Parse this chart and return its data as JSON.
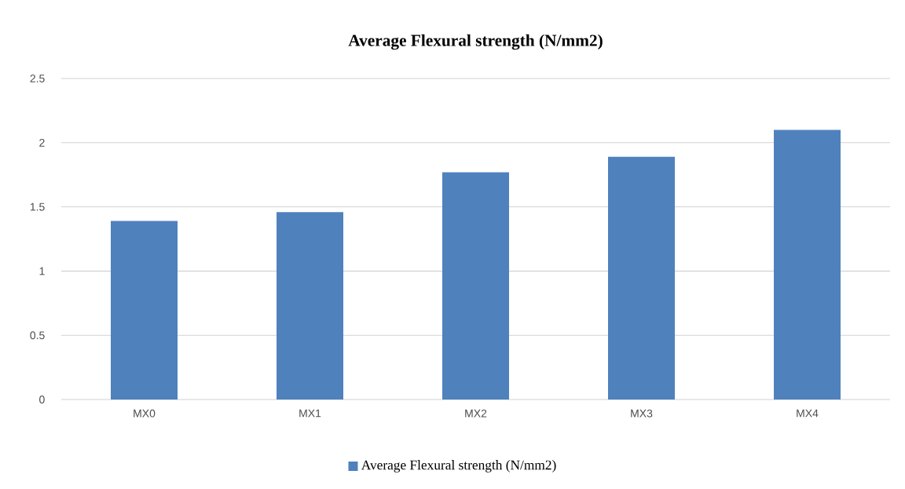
{
  "chart_data": {
    "type": "bar",
    "title": "Average Flexural strength (N/mm2)",
    "categories": [
      "MX0",
      "MX1",
      "MX2",
      "MX3",
      "MX4"
    ],
    "series": [
      {
        "name": "Average Flexural strength (N/mm2)",
        "color": "#4f81bd",
        "values": [
          1.39,
          1.46,
          1.77,
          1.89,
          2.1
        ]
      }
    ],
    "ylim": [
      0,
      2.5
    ],
    "yticks": [
      0,
      0.5,
      1,
      1.5,
      2,
      2.5
    ],
    "grid": "y",
    "legend": "bottom"
  }
}
